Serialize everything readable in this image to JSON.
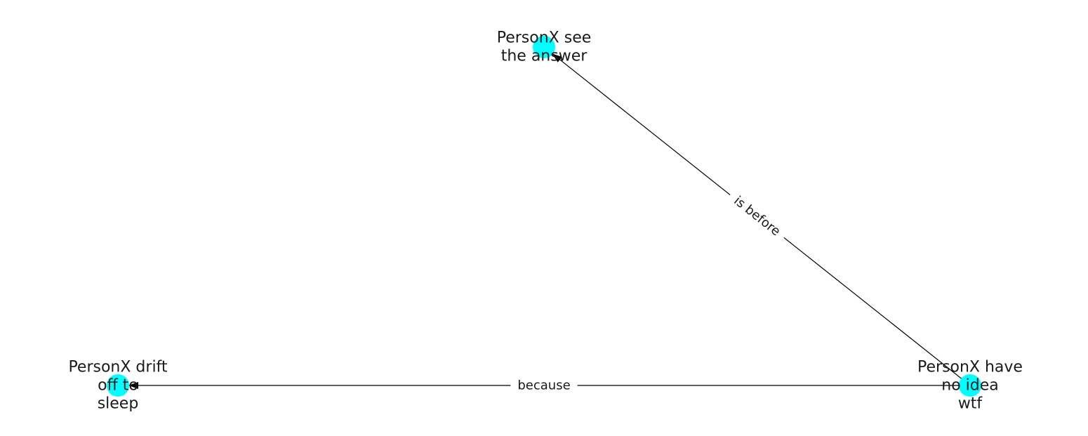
{
  "diagram": {
    "node_color": "#00FFFF",
    "edge_color": "#000000",
    "nodes": [
      {
        "id": "see_answer",
        "label_lines": [
          "PersonX see",
          "the answer"
        ]
      },
      {
        "id": "drift_off",
        "label_lines": [
          "PersonX drift",
          "off to",
          "sleep"
        ]
      },
      {
        "id": "no_idea",
        "label_lines": [
          "PersonX have",
          "no idea",
          "wtf"
        ]
      }
    ],
    "edges": [
      {
        "from": "no_idea",
        "to": "see_answer",
        "label": "is before"
      },
      {
        "from": "no_idea",
        "to": "drift_off",
        "label": "because"
      }
    ]
  }
}
